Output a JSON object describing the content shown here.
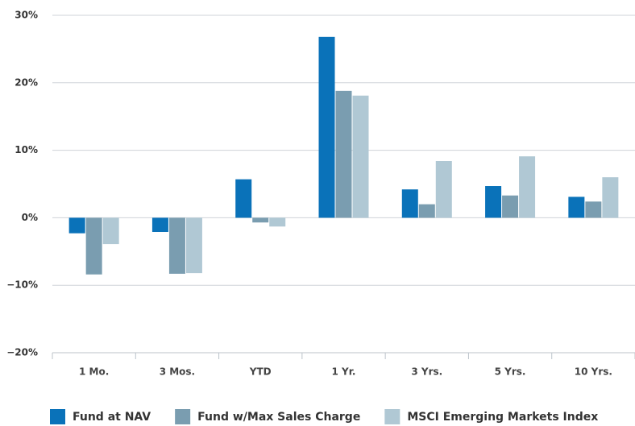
{
  "chart_data": {
    "type": "bar",
    "categories": [
      "1 Mo.",
      "3 Mos.",
      "YTD",
      "1 Yr.",
      "3 Yrs.",
      "5 Yrs.",
      "10 Yrs."
    ],
    "series": [
      {
        "name": "Fund at NAV",
        "color": "#0a72b9",
        "values": [
          -2.3,
          -2.1,
          5.7,
          26.8,
          4.2,
          4.7,
          3.1
        ]
      },
      {
        "name": "Fund w/Max Sales Charge",
        "color": "#7a9db0",
        "values": [
          -8.4,
          -8.3,
          -0.7,
          18.8,
          2.0,
          3.3,
          2.4
        ]
      },
      {
        "name": "MSCI Emerging Markets Index",
        "color": "#b0c8d4",
        "values": [
          -3.9,
          -8.2,
          -1.3,
          18.1,
          8.4,
          9.1,
          6.0
        ]
      }
    ],
    "ylim": [
      -20,
      30
    ],
    "yticks": [
      {
        "value": -20,
        "label": "−20%"
      },
      {
        "value": -10,
        "label": "−10%"
      },
      {
        "value": 0,
        "label": "0%"
      },
      {
        "value": 10,
        "label": "10%"
      },
      {
        "value": 20,
        "label": "20%"
      },
      {
        "value": 30,
        "label": "30%"
      }
    ],
    "grid": true,
    "legend": "bottom"
  }
}
